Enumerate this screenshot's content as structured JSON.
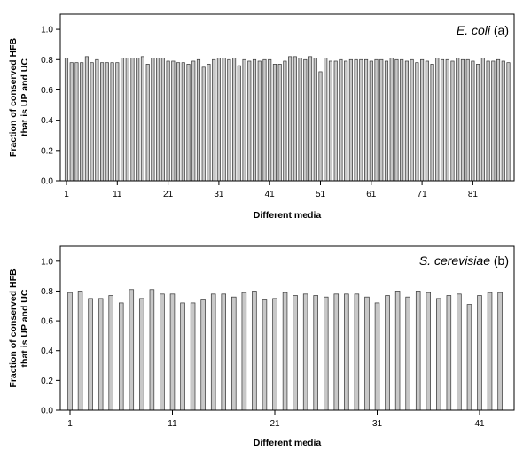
{
  "chart_data": [
    {
      "type": "bar",
      "label": {
        "name": "E. coli",
        "tag": "(a)"
      },
      "xlabel": "Different media",
      "ylabel_lines": [
        "Fraction of conserved HFB",
        "that is UP and UC"
      ],
      "ylim": [
        0.0,
        1.1
      ],
      "yticks": [
        "0.0",
        "0.2",
        "0.4",
        "0.6",
        "0.8",
        "1.0"
      ],
      "xticks": [
        1,
        11,
        21,
        31,
        41,
        51,
        61,
        71,
        81
      ],
      "x": [
        1,
        2,
        3,
        4,
        5,
        6,
        7,
        8,
        9,
        10,
        11,
        12,
        13,
        14,
        15,
        16,
        17,
        18,
        19,
        20,
        21,
        22,
        23,
        24,
        25,
        26,
        27,
        28,
        29,
        30,
        31,
        32,
        33,
        34,
        35,
        36,
        37,
        38,
        39,
        40,
        41,
        42,
        43,
        44,
        45,
        46,
        47,
        48,
        49,
        50,
        51,
        52,
        53,
        54,
        55,
        56,
        57,
        58,
        59,
        60,
        61,
        62,
        63,
        64,
        65,
        66,
        67,
        68,
        69,
        70,
        71,
        72,
        73,
        74,
        75,
        76,
        77,
        78,
        79,
        80,
        81,
        82,
        83,
        84,
        85,
        86,
        87,
        88
      ],
      "values": [
        0.81,
        0.78,
        0.78,
        0.78,
        0.82,
        0.78,
        0.8,
        0.78,
        0.78,
        0.78,
        0.78,
        0.81,
        0.81,
        0.81,
        0.81,
        0.82,
        0.77,
        0.81,
        0.81,
        0.81,
        0.79,
        0.79,
        0.78,
        0.78,
        0.77,
        0.79,
        0.8,
        0.75,
        0.77,
        0.8,
        0.81,
        0.81,
        0.8,
        0.81,
        0.76,
        0.8,
        0.79,
        0.8,
        0.79,
        0.8,
        0.8,
        0.77,
        0.77,
        0.79,
        0.82,
        0.82,
        0.81,
        0.8,
        0.82,
        0.81,
        0.72,
        0.81,
        0.79,
        0.79,
        0.8,
        0.79,
        0.8,
        0.8,
        0.8,
        0.8,
        0.79,
        0.8,
        0.8,
        0.79,
        0.81,
        0.8,
        0.8,
        0.79,
        0.8,
        0.78,
        0.8,
        0.79,
        0.77,
        0.81,
        0.8,
        0.8,
        0.79,
        0.81,
        0.8,
        0.8,
        0.79,
        0.77,
        0.81,
        0.79,
        0.79,
        0.8,
        0.79,
        0.78
      ],
      "colors": {
        "bar_fill": "#c8c8c8",
        "bar_stroke": "#333333"
      }
    },
    {
      "type": "bar",
      "label": {
        "name": "S. cerevisiae",
        "tag": "(b)"
      },
      "xlabel": "Different media",
      "ylabel_lines": [
        "Fraction of conserved HFB",
        "that is UP and UC"
      ],
      "ylim": [
        0.0,
        1.1
      ],
      "yticks": [
        "0.0",
        "0.2",
        "0.4",
        "0.6",
        "0.8",
        "1.0"
      ],
      "xticks": [
        1,
        11,
        21,
        31,
        41
      ],
      "x": [
        1,
        2,
        3,
        4,
        5,
        6,
        7,
        8,
        9,
        10,
        11,
        12,
        13,
        14,
        15,
        16,
        17,
        18,
        19,
        20,
        21,
        22,
        23,
        24,
        25,
        26,
        27,
        28,
        29,
        30,
        31,
        32,
        33,
        34,
        35,
        36,
        37,
        38,
        39,
        40,
        41,
        42,
        43
      ],
      "values": [
        0.79,
        0.8,
        0.75,
        0.75,
        0.77,
        0.72,
        0.81,
        0.75,
        0.81,
        0.78,
        0.78,
        0.72,
        0.72,
        0.74,
        0.78,
        0.78,
        0.76,
        0.79,
        0.8,
        0.74,
        0.75,
        0.79,
        0.77,
        0.78,
        0.77,
        0.76,
        0.78,
        0.78,
        0.78,
        0.76,
        0.72,
        0.77,
        0.8,
        0.76,
        0.8,
        0.79,
        0.75,
        0.77,
        0.78,
        0.71,
        0.77,
        0.79,
        0.79
      ],
      "colors": {
        "bar_fill": "#c8c8c8",
        "bar_stroke": "#333333"
      }
    }
  ]
}
